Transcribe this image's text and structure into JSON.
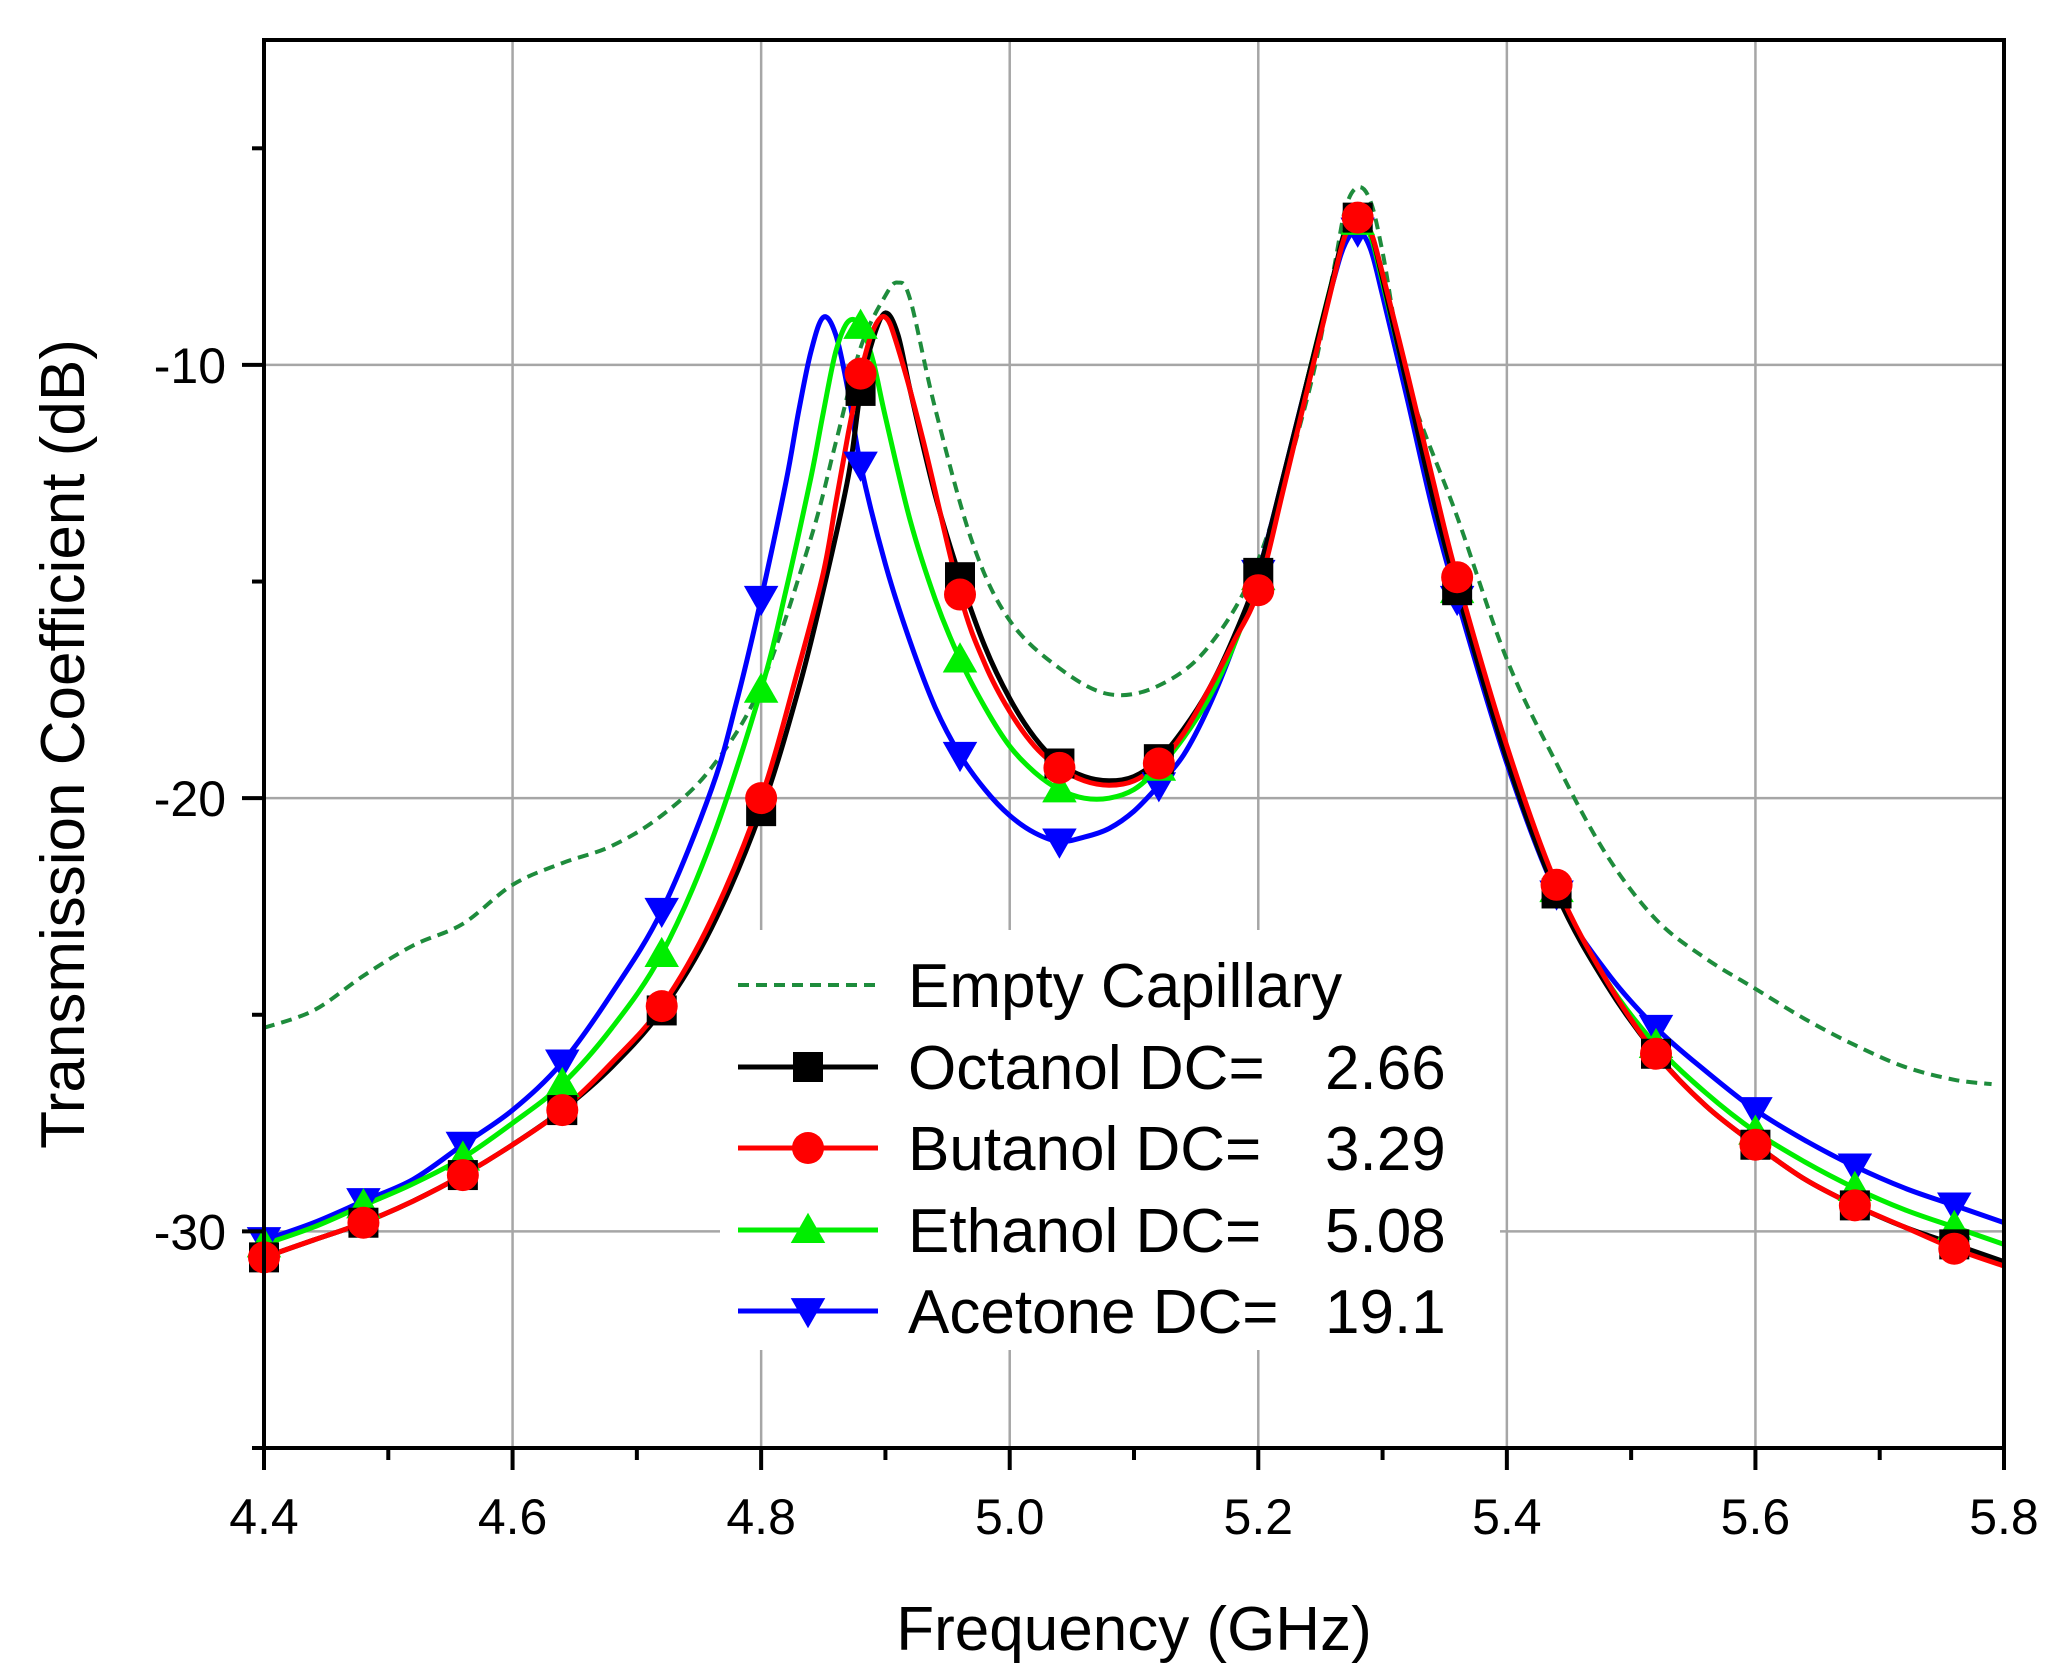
{
  "chart_data": {
    "type": "line",
    "title": "",
    "xlabel": "Frequency (GHz)",
    "ylabel": "Transmission Coefficient (dB)",
    "xlim": [
      4.4,
      5.8
    ],
    "ylim": [
      -35,
      -2.5
    ],
    "grid": true,
    "x_ticks": [
      4.4,
      4.6,
      4.8,
      5.0,
      5.2,
      5.4,
      5.6,
      5.8
    ],
    "x_tick_labels": [
      "4.4",
      "4.6",
      "4.8",
      "5.0",
      "5.2",
      "5.4",
      "5.6",
      "5.8"
    ],
    "y_ticks": [
      -10,
      -20,
      -30
    ],
    "y_tick_labels": [
      "-10",
      "-20",
      "-30"
    ],
    "legend_position": "bottom-center",
    "series": [
      {
        "name": "Empty Capillary",
        "legend_label": "Empty Capillary",
        "color": "#1e8c3c",
        "style": "dashed",
        "marker": "none",
        "x": [
          4.4,
          4.44,
          4.48,
          4.52,
          4.56,
          4.6,
          4.64,
          4.68,
          4.72,
          4.76,
          4.8,
          4.84,
          4.86,
          4.88,
          4.9,
          4.91,
          4.92,
          4.94,
          4.97,
          5.0,
          5.04,
          5.08,
          5.12,
          5.16,
          5.2,
          5.24,
          5.26,
          5.27,
          5.28,
          5.29,
          5.3,
          5.32,
          5.36,
          5.4,
          5.44,
          5.48,
          5.52,
          5.56,
          5.6,
          5.64,
          5.68,
          5.72,
          5.76,
          5.79
        ],
        "y": [
          -25.3,
          -24.9,
          -24.1,
          -23.4,
          -22.9,
          -22.0,
          -21.5,
          -21.1,
          -20.4,
          -19.3,
          -17.4,
          -14.0,
          -11.8,
          -9.6,
          -8.4,
          -8.1,
          -8.5,
          -11.0,
          -14.1,
          -15.9,
          -17.0,
          -17.6,
          -17.4,
          -16.5,
          -14.5,
          -10.7,
          -7.9,
          -6.4,
          -5.9,
          -6.2,
          -7.4,
          -10.4,
          -13.5,
          -16.8,
          -19.2,
          -21.3,
          -22.8,
          -23.7,
          -24.4,
          -25.1,
          -25.7,
          -26.2,
          -26.5,
          -26.6
        ]
      },
      {
        "name": "Octanol",
        "legend_label": "Octanol DC=",
        "dielectric_constant": "2.66",
        "color": "#000000",
        "style": "solid",
        "marker": "square",
        "x": [
          4.4,
          4.44,
          4.48,
          4.52,
          4.56,
          4.6,
          4.64,
          4.68,
          4.72,
          4.76,
          4.8,
          4.83,
          4.85,
          4.87,
          4.88,
          4.89,
          4.9,
          4.91,
          4.92,
          4.94,
          4.96,
          4.98,
          5.0,
          5.02,
          5.04,
          5.06,
          5.08,
          5.1,
          5.12,
          5.14,
          5.16,
          5.18,
          5.2,
          5.22,
          5.24,
          5.26,
          5.27,
          5.28,
          5.29,
          5.3,
          5.32,
          5.34,
          5.36,
          5.4,
          5.44,
          5.48,
          5.52,
          5.56,
          5.6,
          5.64,
          5.68,
          5.72,
          5.76,
          5.8
        ],
        "y": [
          -30.6,
          -30.2,
          -29.8,
          -29.3,
          -28.7,
          -28.0,
          -27.2,
          -26.2,
          -24.9,
          -23.0,
          -20.3,
          -17.5,
          -15.2,
          -12.6,
          -10.6,
          -9.4,
          -8.8,
          -9.3,
          -10.6,
          -13.0,
          -14.9,
          -16.5,
          -17.7,
          -18.6,
          -19.2,
          -19.5,
          -19.6,
          -19.5,
          -19.1,
          -18.4,
          -17.5,
          -16.3,
          -14.8,
          -12.6,
          -10.3,
          -8.0,
          -6.9,
          -6.6,
          -6.9,
          -8.0,
          -10.5,
          -13.0,
          -15.2,
          -19.1,
          -22.2,
          -24.3,
          -25.9,
          -27.1,
          -28.0,
          -28.8,
          -29.4,
          -29.9,
          -30.3,
          -30.7
        ],
        "markers_x": [
          4.4,
          4.48,
          4.56,
          4.64,
          4.72,
          4.8,
          4.88,
          4.96,
          5.04,
          5.12,
          5.2,
          5.28,
          5.36,
          5.44,
          5.52,
          5.6,
          5.68,
          5.76
        ],
        "markers_y": [
          -30.6,
          -29.8,
          -28.7,
          -27.2,
          -24.9,
          -20.3,
          -10.6,
          -14.9,
          -19.2,
          -19.1,
          -14.8,
          -6.6,
          -15.2,
          -22.2,
          -25.9,
          -28.0,
          -29.4,
          -30.3
        ]
      },
      {
        "name": "Butanol",
        "legend_label": "Butanol DC=",
        "dielectric_constant": "3.29",
        "color": "#ff0000",
        "style": "solid",
        "marker": "circle",
        "x": [
          4.4,
          4.44,
          4.48,
          4.52,
          4.56,
          4.6,
          4.64,
          4.68,
          4.72,
          4.76,
          4.8,
          4.83,
          4.85,
          4.86,
          4.87,
          4.88,
          4.89,
          4.9,
          4.91,
          4.93,
          4.96,
          4.98,
          5.0,
          5.02,
          5.04,
          5.06,
          5.08,
          5.1,
          5.12,
          5.14,
          5.16,
          5.18,
          5.2,
          5.22,
          5.24,
          5.26,
          5.27,
          5.28,
          5.29,
          5.3,
          5.32,
          5.34,
          5.36,
          5.4,
          5.44,
          5.48,
          5.52,
          5.56,
          5.6,
          5.64,
          5.68,
          5.72,
          5.76,
          5.8
        ],
        "y": [
          -30.6,
          -30.2,
          -29.8,
          -29.3,
          -28.7,
          -28.0,
          -27.2,
          -26.1,
          -24.8,
          -22.8,
          -20.0,
          -17.0,
          -14.8,
          -13.2,
          -11.6,
          -10.2,
          -9.2,
          -8.9,
          -9.6,
          -11.7,
          -15.3,
          -16.9,
          -18.0,
          -18.8,
          -19.3,
          -19.6,
          -19.7,
          -19.6,
          -19.2,
          -18.5,
          -17.5,
          -16.4,
          -15.2,
          -12.9,
          -10.5,
          -8.1,
          -7.0,
          -6.6,
          -6.9,
          -7.9,
          -10.2,
          -12.6,
          -14.9,
          -18.8,
          -22.0,
          -24.2,
          -25.9,
          -27.1,
          -28.0,
          -28.8,
          -29.4,
          -29.9,
          -30.4,
          -30.8
        ],
        "markers_x": [
          4.4,
          4.48,
          4.56,
          4.64,
          4.72,
          4.8,
          4.88,
          4.96,
          5.04,
          5.12,
          5.2,
          5.28,
          5.36,
          5.44,
          5.52,
          5.6,
          5.68,
          5.76
        ],
        "markers_y": [
          -30.6,
          -29.8,
          -28.7,
          -27.2,
          -24.8,
          -20.0,
          -10.2,
          -15.3,
          -19.3,
          -19.2,
          -15.2,
          -6.6,
          -14.9,
          -22.0,
          -25.9,
          -28.0,
          -29.4,
          -30.4
        ]
      },
      {
        "name": "Ethanol",
        "legend_label": "Ethanol DC=",
        "dielectric_constant": "5.08",
        "color": "#00ee00",
        "style": "solid",
        "marker": "triangle-up",
        "x": [
          4.4,
          4.44,
          4.48,
          4.52,
          4.56,
          4.6,
          4.64,
          4.68,
          4.72,
          4.76,
          4.8,
          4.82,
          4.84,
          4.85,
          4.86,
          4.87,
          4.88,
          4.89,
          4.9,
          4.92,
          4.94,
          4.96,
          4.98,
          5.0,
          5.02,
          5.04,
          5.06,
          5.08,
          5.1,
          5.12,
          5.14,
          5.16,
          5.18,
          5.2,
          5.22,
          5.24,
          5.26,
          5.27,
          5.28,
          5.29,
          5.3,
          5.32,
          5.34,
          5.36,
          5.4,
          5.44,
          5.48,
          5.52,
          5.56,
          5.6,
          5.64,
          5.68,
          5.72,
          5.76,
          5.8
        ],
        "y": [
          -30.3,
          -29.9,
          -29.4,
          -28.9,
          -28.3,
          -27.5,
          -26.6,
          -25.3,
          -23.6,
          -21.0,
          -17.5,
          -15.2,
          -12.6,
          -11.1,
          -9.7,
          -9.0,
          -9.1,
          -9.9,
          -11.2,
          -13.6,
          -15.4,
          -16.8,
          -17.9,
          -18.8,
          -19.4,
          -19.8,
          -20.0,
          -20.0,
          -19.8,
          -19.3,
          -18.6,
          -17.7,
          -16.5,
          -14.9,
          -12.7,
          -10.3,
          -8.0,
          -7.0,
          -6.7,
          -7.0,
          -8.1,
          -10.5,
          -13.0,
          -15.2,
          -19.0,
          -22.1,
          -24.2,
          -25.7,
          -26.8,
          -27.7,
          -28.4,
          -29.0,
          -29.5,
          -29.9,
          -30.3
        ],
        "markers_x": [
          4.4,
          4.48,
          4.56,
          4.64,
          4.72,
          4.8,
          4.88,
          4.96,
          5.04,
          5.12,
          5.2,
          5.28,
          5.36,
          5.44,
          5.52,
          5.6,
          5.68,
          5.76
        ],
        "markers_y": [
          -30.3,
          -29.4,
          -28.3,
          -26.6,
          -23.6,
          -17.5,
          -9.1,
          -16.8,
          -19.8,
          -19.3,
          -14.9,
          -6.7,
          -15.2,
          -22.1,
          -25.7,
          -27.7,
          -29.0,
          -29.9
        ]
      },
      {
        "name": "Acetone",
        "legend_label": "Acetone DC=",
        "dielectric_constant": "19.1",
        "color": "#0000ff",
        "style": "solid",
        "marker": "triangle-down",
        "x": [
          4.4,
          4.44,
          4.48,
          4.52,
          4.56,
          4.6,
          4.64,
          4.68,
          4.72,
          4.76,
          4.78,
          4.8,
          4.82,
          4.83,
          4.84,
          4.85,
          4.86,
          4.87,
          4.88,
          4.9,
          4.92,
          4.94,
          4.96,
          4.98,
          5.0,
          5.02,
          5.04,
          5.06,
          5.08,
          5.1,
          5.12,
          5.14,
          5.16,
          5.18,
          5.2,
          5.22,
          5.24,
          5.26,
          5.27,
          5.28,
          5.29,
          5.3,
          5.32,
          5.34,
          5.36,
          5.4,
          5.44,
          5.48,
          5.52,
          5.56,
          5.6,
          5.64,
          5.68,
          5.72,
          5.76,
          5.8
        ],
        "y": [
          -30.2,
          -29.8,
          -29.3,
          -28.8,
          -28.0,
          -27.2,
          -26.1,
          -24.5,
          -22.6,
          -19.8,
          -17.8,
          -15.4,
          -12.7,
          -11.1,
          -9.7,
          -8.9,
          -9.3,
          -10.6,
          -12.3,
          -14.6,
          -16.4,
          -17.9,
          -19.0,
          -19.8,
          -20.4,
          -20.8,
          -21.0,
          -20.9,
          -20.7,
          -20.3,
          -19.7,
          -19.0,
          -17.9,
          -16.5,
          -14.8,
          -12.6,
          -10.3,
          -8.1,
          -7.2,
          -6.9,
          -7.3,
          -8.4,
          -10.8,
          -13.3,
          -15.4,
          -19.2,
          -22.2,
          -24.0,
          -25.3,
          -26.3,
          -27.2,
          -27.9,
          -28.5,
          -29.0,
          -29.4,
          -29.8
        ],
        "markers_x": [
          4.4,
          4.48,
          4.56,
          4.64,
          4.72,
          4.8,
          4.88,
          4.96,
          5.04,
          5.12,
          5.2,
          5.28,
          5.36,
          5.44,
          5.52,
          5.6,
          5.68,
          5.76
        ],
        "markers_y": [
          -30.2,
          -29.3,
          -28.0,
          -26.1,
          -22.6,
          -15.4,
          -12.3,
          -19.0,
          -21.0,
          -19.7,
          -14.8,
          -6.9,
          -15.4,
          -22.2,
          -25.3,
          -27.2,
          -28.5,
          -29.4
        ]
      }
    ]
  }
}
